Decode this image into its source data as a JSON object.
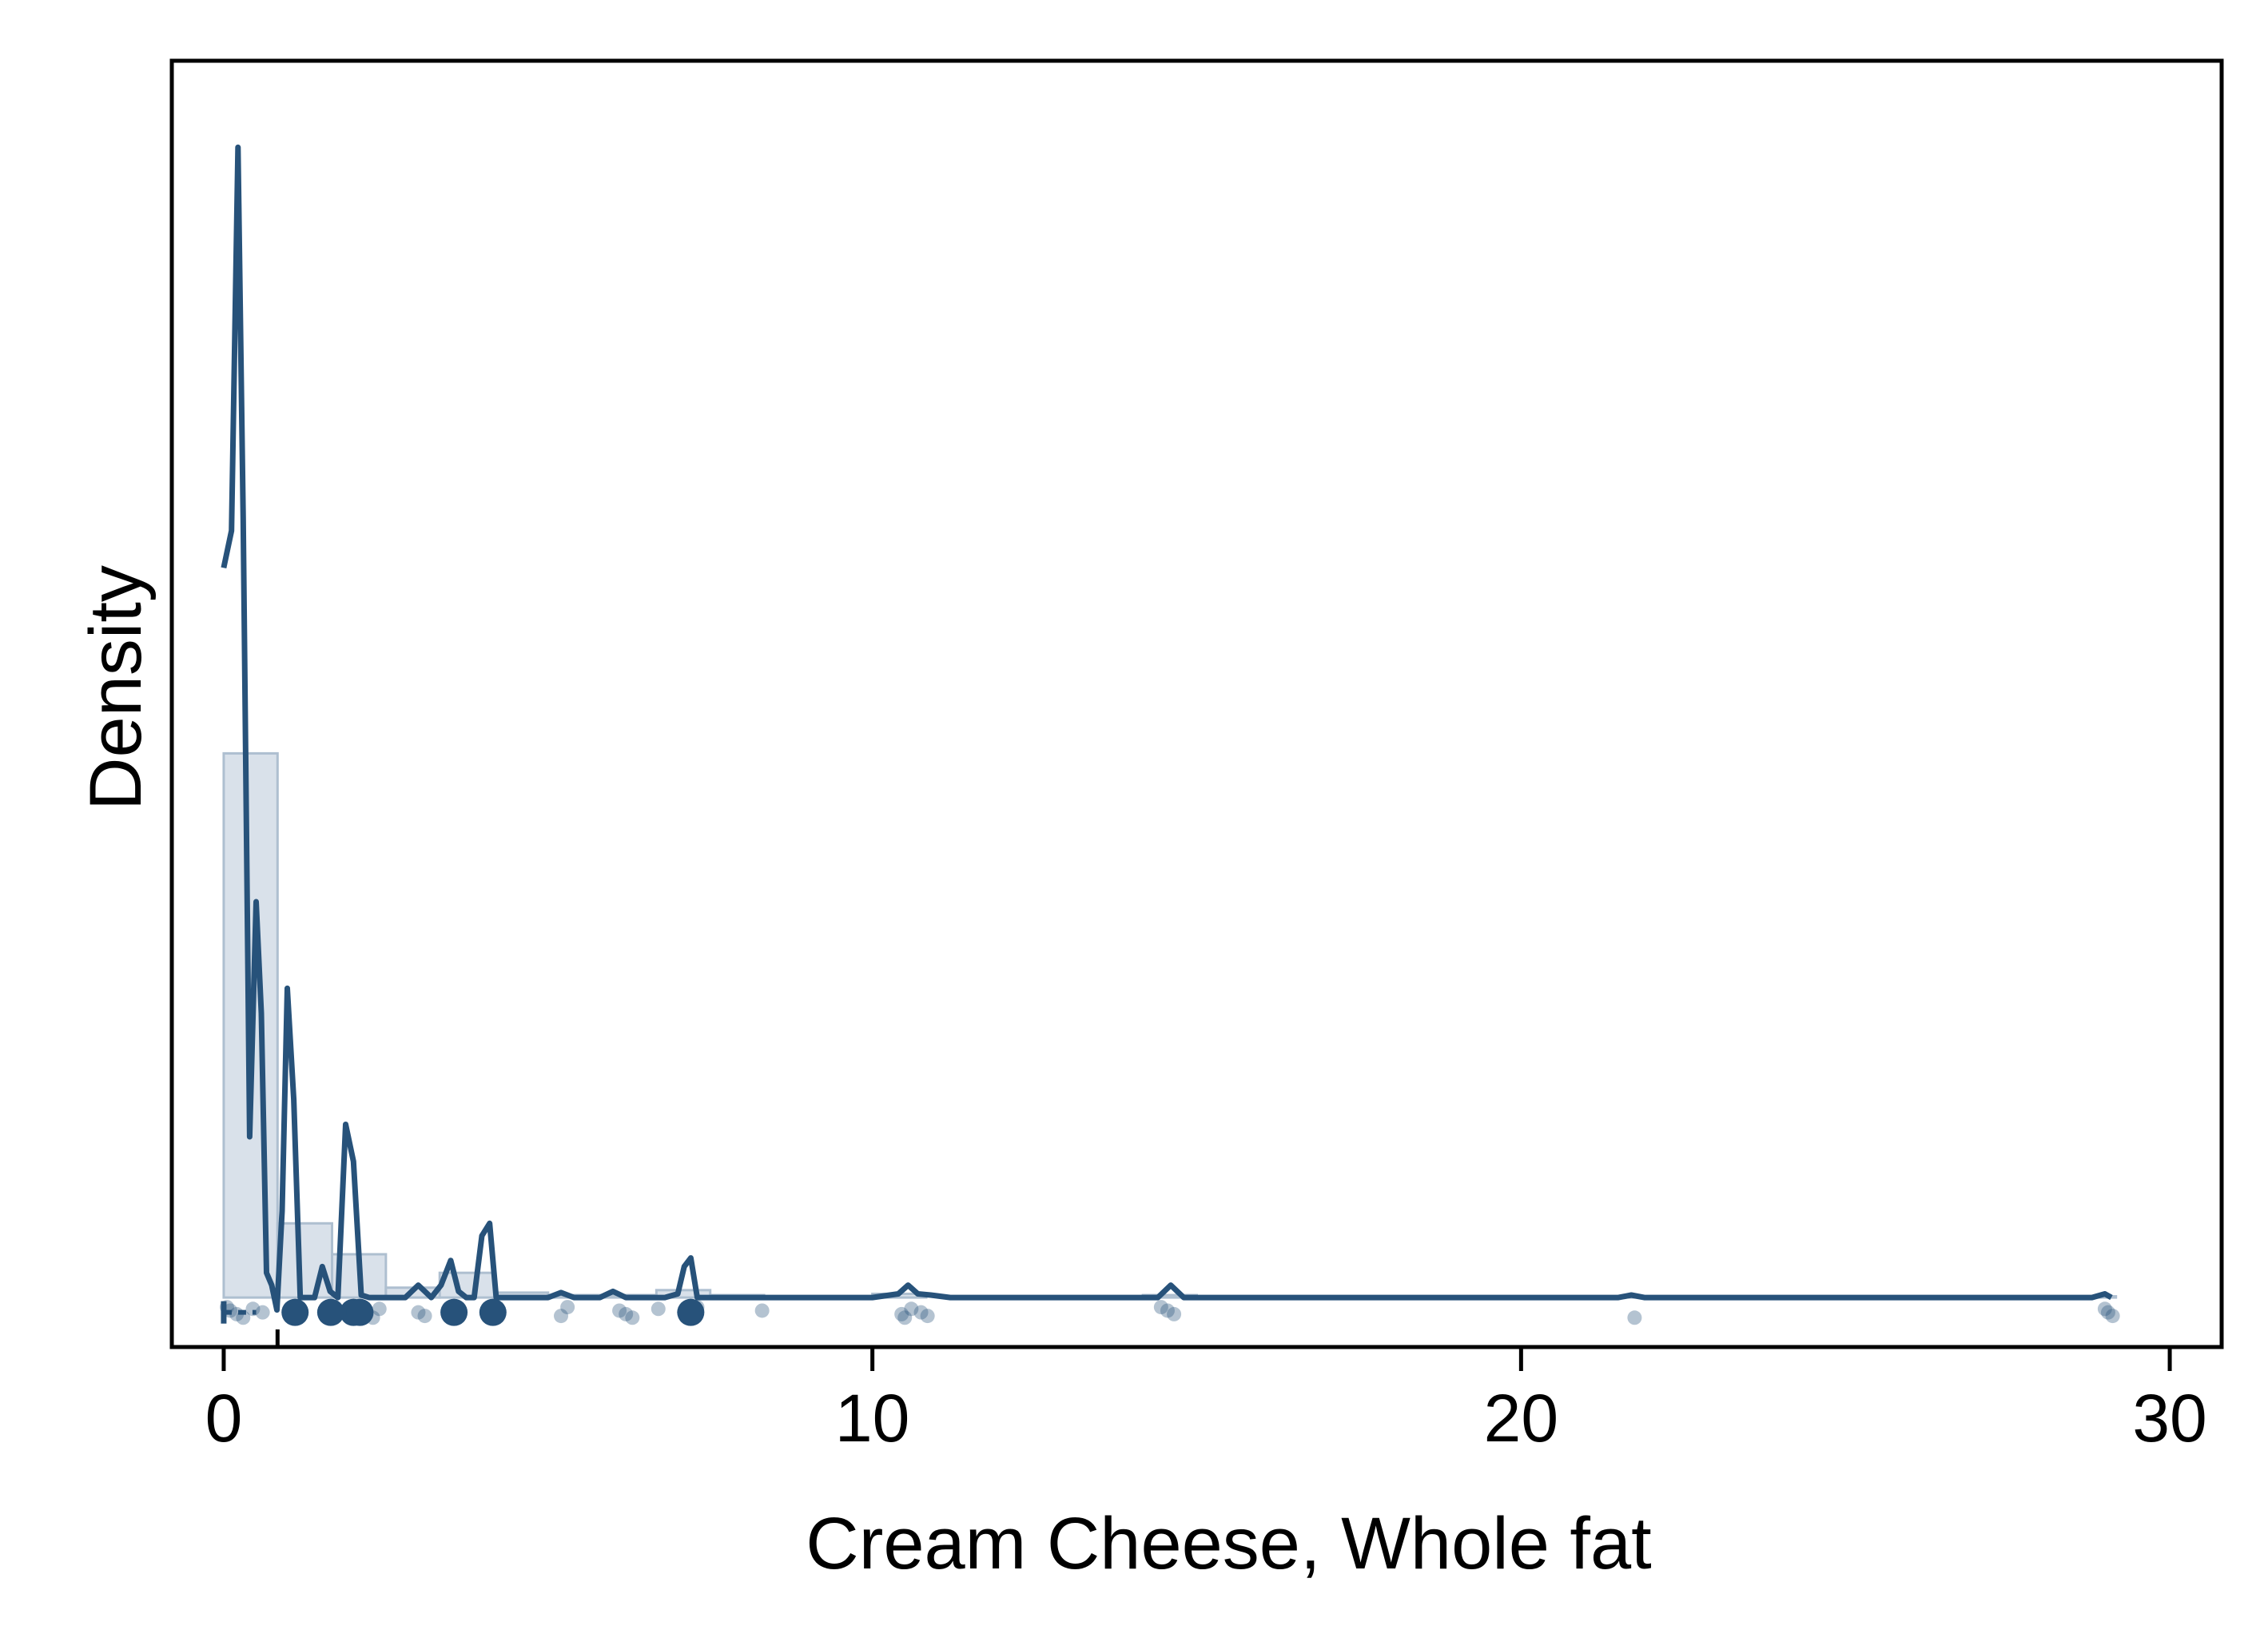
{
  "chart_data": {
    "type": "histogram-density",
    "xlabel": "Cream Cheese, Whole fat",
    "ylabel": "Density",
    "xlim": [
      -0.8,
      30.8
    ],
    "ylim": [
      -0.04,
      1.0
    ],
    "x_ticks": [
      0,
      10,
      20,
      30
    ],
    "grid": false,
    "colors": {
      "line": "#27527a",
      "bars": "#d9e1ea",
      "bar_edge": "#aebfd0",
      "points": "#27527a"
    },
    "histogram_bins": [
      {
        "x0": 0.0,
        "x1": 0.83,
        "density": 0.44
      },
      {
        "x0": 0.83,
        "x1": 1.67,
        "density": 0.06
      },
      {
        "x0": 1.67,
        "x1": 2.5,
        "density": 0.035
      },
      {
        "x0": 2.5,
        "x1": 3.33,
        "density": 0.008
      },
      {
        "x0": 3.33,
        "x1": 4.17,
        "density": 0.02
      },
      {
        "x0": 4.17,
        "x1": 5.0,
        "density": 0.004
      },
      {
        "x0": 5.0,
        "x1": 5.83,
        "density": 0.002
      },
      {
        "x0": 5.83,
        "x1": 6.67,
        "density": 0.002
      },
      {
        "x0": 6.67,
        "x1": 7.5,
        "density": 0.006
      },
      {
        "x0": 7.5,
        "x1": 8.33,
        "density": 0.002
      },
      {
        "x0": 10.0,
        "x1": 10.83,
        "density": 0.003
      },
      {
        "x0": 14.17,
        "x1": 15.0,
        "density": 0.002
      },
      {
        "x0": 21.67,
        "x1": 22.5,
        "density": 0.001
      },
      {
        "x0": 28.33,
        "x1": 29.17,
        "density": 0.001
      }
    ],
    "density_curve": {
      "x": [
        0.0,
        0.12,
        0.22,
        0.3,
        0.4,
        0.5,
        0.58,
        0.66,
        0.74,
        0.82,
        0.9,
        0.98,
        1.08,
        1.18,
        1.26,
        1.4,
        1.52,
        1.64,
        1.76,
        1.88,
        2.0,
        2.12,
        2.24,
        2.4,
        2.6,
        2.8,
        3.0,
        3.1,
        3.2,
        3.35,
        3.5,
        3.62,
        3.74,
        3.86,
        3.98,
        4.1,
        4.2,
        4.3,
        4.5,
        5.0,
        5.2,
        5.4,
        5.8,
        6.0,
        6.2,
        6.4,
        6.8,
        7.0,
        7.1,
        7.2,
        7.3,
        7.4,
        8.0,
        10.0,
        10.4,
        10.55,
        10.7,
        10.9,
        11.2,
        14.0,
        14.4,
        14.6,
        14.8,
        15.2,
        21.5,
        21.7,
        21.9,
        22.2,
        28.8,
        29.0,
        29.1
      ],
      "density": [
        0.59,
        0.62,
        0.93,
        0.63,
        0.13,
        0.32,
        0.23,
        0.02,
        0.01,
        -0.01,
        0.07,
        0.25,
        0.16,
        0.0,
        0.0,
        0.0,
        0.025,
        0.005,
        0.0,
        0.14,
        0.11,
        0.002,
        0.0,
        0.0,
        0.0,
        0.0,
        0.01,
        0.005,
        0.0,
        0.01,
        0.03,
        0.005,
        0.0,
        0.0,
        0.05,
        0.06,
        0.0,
        0.0,
        0.0,
        0.0,
        0.004,
        0.0,
        0.0,
        0.005,
        0.0,
        0.0,
        0.0,
        0.003,
        0.025,
        0.032,
        0.0,
        0.0,
        0.0,
        0.0,
        0.003,
        0.01,
        0.003,
        0.002,
        0.0,
        0.0,
        0.0,
        0.01,
        0.0,
        0.0,
        0.0,
        0.002,
        0.0,
        0.0,
        0.0,
        0.003,
        0.0
      ]
    },
    "observations": [
      0.05,
      0.1,
      0.2,
      0.3,
      0.45,
      0.6,
      1.05,
      1.1,
      1.15,
      1.6,
      1.65,
      1.7,
      1.95,
      2.0,
      2.05,
      2.1,
      2.2,
      2.3,
      2.4,
      3.0,
      3.1,
      3.5,
      3.55,
      3.6,
      4.1,
      4.15,
      4.2,
      5.2,
      5.3,
      6.1,
      6.2,
      6.3,
      6.7,
      7.1,
      7.2,
      7.3,
      8.3,
      10.45,
      10.5,
      10.6,
      10.75,
      10.85,
      14.45,
      14.55,
      14.65,
      21.75,
      29.0,
      29.05,
      29.12
    ],
    "boxplot": {
      "min": 0.0,
      "q1": 0.05,
      "median": 0.1,
      "q3": 0.5,
      "mean_marker": 0.83
    }
  }
}
